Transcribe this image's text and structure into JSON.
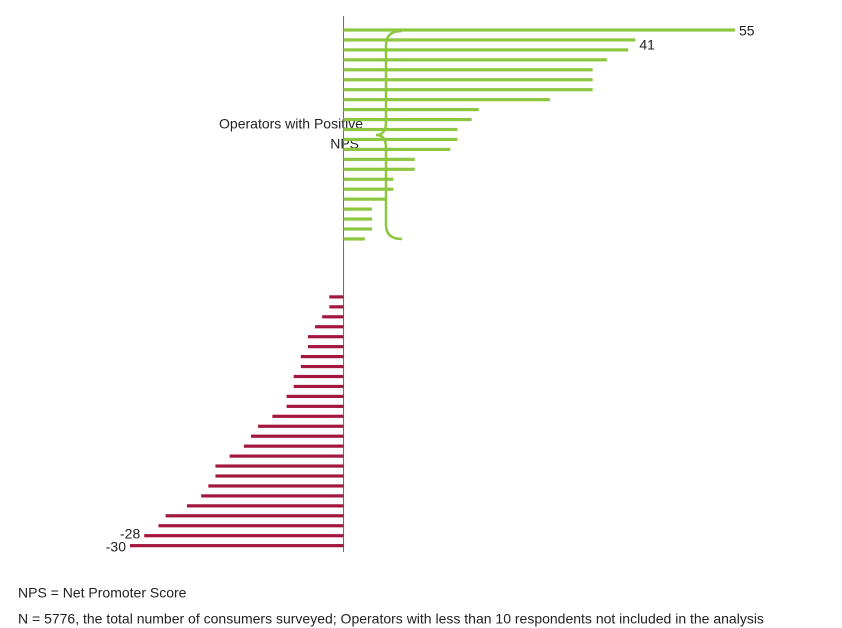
{
  "chart_data": {
    "type": "bar",
    "orientation": "horizontal",
    "categories": [
      null,
      null,
      null,
      null,
      null,
      null,
      null,
      null,
      null,
      null,
      null,
      null,
      null,
      null,
      null,
      null,
      null,
      null,
      null,
      null,
      null,
      null,
      null,
      null,
      null,
      null,
      null,
      null,
      null,
      null,
      null,
      null,
      null,
      null,
      null,
      null,
      null,
      null,
      null,
      null,
      null,
      null,
      null,
      null,
      null,
      null,
      null,
      null
    ],
    "values": [
      55,
      41,
      40,
      37,
      35,
      35,
      35,
      29,
      19,
      18,
      16,
      16,
      15,
      10,
      10,
      7,
      7,
      6,
      4,
      4,
      4,
      3,
      -2,
      -2,
      -3,
      -4,
      -5,
      -5,
      -6,
      -6,
      -7,
      -7,
      -8,
      -8,
      -10,
      -12,
      -13,
      -14,
      -16,
      -18,
      -18,
      -19,
      -20,
      -22,
      -25,
      -26,
      -28,
      -30
    ],
    "value_labels": [
      "55",
      "41",
      null,
      null,
      null,
      null,
      null,
      null,
      null,
      null,
      null,
      null,
      null,
      null,
      null,
      null,
      null,
      null,
      null,
      null,
      null,
      null,
      null,
      null,
      null,
      null,
      null,
      null,
      null,
      null,
      null,
      null,
      null,
      null,
      null,
      null,
      null,
      null,
      null,
      null,
      null,
      null,
      null,
      null,
      null,
      null,
      "-28",
      "-30"
    ],
    "positive_color": "#8dc63f",
    "negative_color": "#a3173e",
    "xlim": [
      -30,
      55
    ],
    "annotation": [
      "Operators with Positive",
      "NPS"
    ],
    "footnotes": [
      "NPS = Net Promoter Score",
      "N = 5776, the total number of consumers surveyed; Operators with less than 10 respondents not included in the analysis"
    ]
  }
}
